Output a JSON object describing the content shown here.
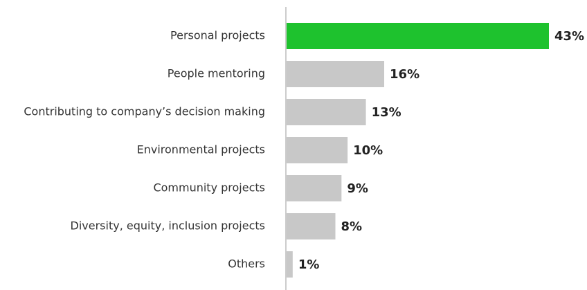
{
  "chart_data": {
    "type": "bar",
    "orientation": "horizontal",
    "categories": [
      "Personal projects",
      "People mentoring",
      "Contributing to company’s decision making",
      "Environmental projects",
      "Community projects",
      "Diversity, equity, inclusion projects",
      "Others"
    ],
    "values": [
      43,
      16,
      13,
      10,
      9,
      8,
      1
    ],
    "value_labels": [
      "43%",
      "16%",
      "13%",
      "10%",
      "9%",
      "8%",
      "1%"
    ],
    "colors": [
      "#1ec22e",
      "#c8c8c8",
      "#c8c8c8",
      "#c8c8c8",
      "#c8c8c8",
      "#c8c8c8",
      "#c8c8c8"
    ]
  }
}
